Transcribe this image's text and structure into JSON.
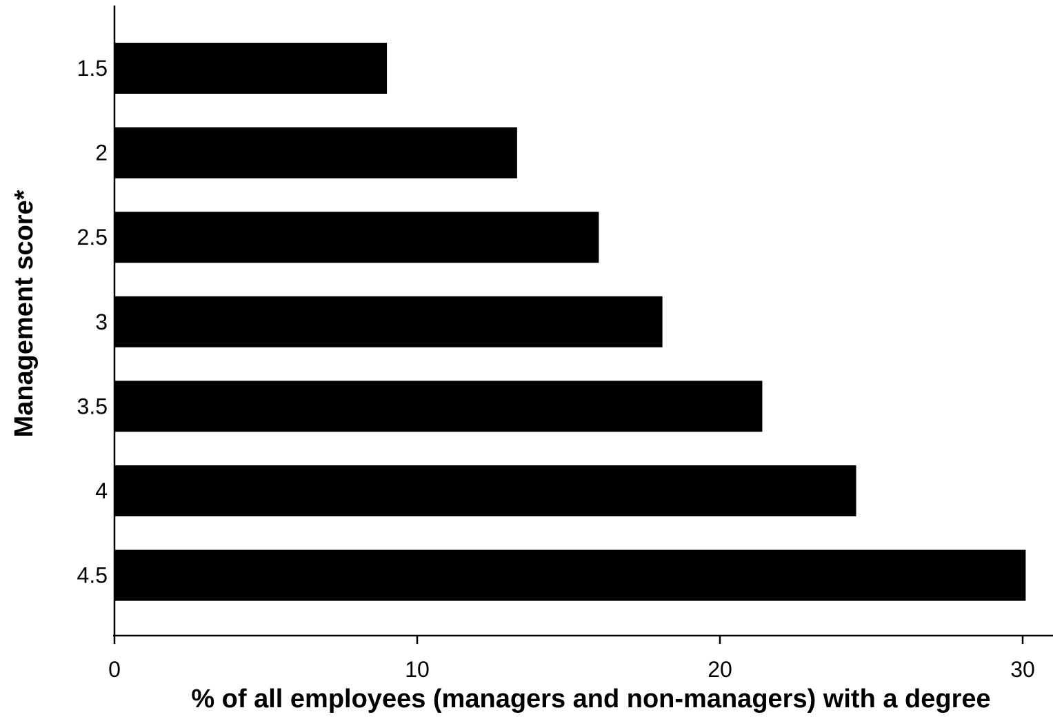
{
  "chart_data": {
    "type": "bar",
    "orientation": "horizontal",
    "categories": [
      "1.5",
      "2",
      "2.5",
      "3",
      "3.5",
      "4",
      "4.5"
    ],
    "values": [
      9.0,
      13.3,
      16.0,
      18.1,
      21.4,
      24.5,
      30.1
    ],
    "title": "",
    "xlabel": "% of all employees (managers and non-managers) with a degree",
    "ylabel": "Management score*",
    "xlim": [
      0,
      31
    ],
    "x_ticks": [
      "0",
      "10",
      "20",
      "30"
    ],
    "grid": false,
    "legend": "none",
    "bar_color": "#000000"
  }
}
